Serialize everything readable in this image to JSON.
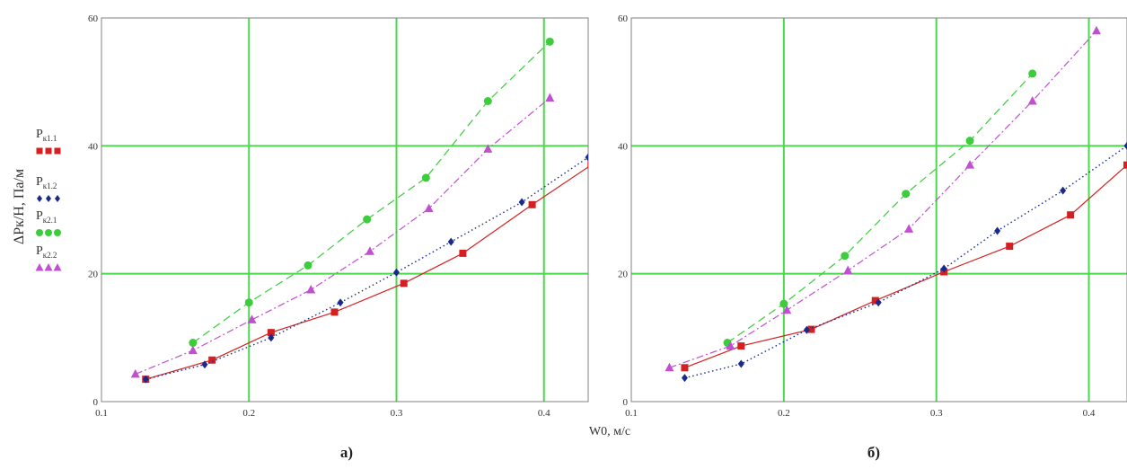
{
  "figure": {
    "y_label": "ΔPк/Н, Па/м",
    "x_label": "W0, м/с",
    "colors": {
      "grid": "#4cd84c",
      "axis": "#808080"
    },
    "legend": [
      {
        "main": "P",
        "sub": "к1.1",
        "marker": "square",
        "color": "#d42020"
      },
      {
        "main": "P",
        "sub": "к1.2",
        "marker": "diamond",
        "color": "#1a2a8c"
      },
      {
        "main": "P",
        "sub": "к2.1",
        "marker": "circle",
        "color": "#3ccc3c"
      },
      {
        "main": "P",
        "sub": "к2.2",
        "marker": "triangle",
        "color": "#c050d0"
      }
    ]
  },
  "chart_data": [
    {
      "type": "line",
      "panel_label": "а)",
      "xlim": [
        0.1,
        0.43
      ],
      "ylim": [
        0,
        60
      ],
      "x_ticks": [
        "0.1",
        "0.2",
        "0.3",
        "0.4"
      ],
      "y_ticks": [
        "0",
        "20",
        "40",
        "60"
      ],
      "grid": true,
      "legend_position": "left",
      "series": [
        {
          "name": "Pк1.1",
          "color": "#d42020",
          "marker": "square",
          "line": "solid",
          "x": [
            0.13,
            0.175,
            0.215,
            0.258,
            0.305,
            0.345,
            0.392,
            0.432
          ],
          "y": [
            3.5,
            6.5,
            10.8,
            14.0,
            18.5,
            23.2,
            30.8,
            37.0
          ]
        },
        {
          "name": "Pк1.2",
          "color": "#1a2a8c",
          "marker": "diamond",
          "line": "dotted",
          "x": [
            0.13,
            0.17,
            0.215,
            0.262,
            0.3,
            0.337,
            0.385,
            0.43
          ],
          "y": [
            3.5,
            5.8,
            10.0,
            15.5,
            20.2,
            25.0,
            31.2,
            38.2
          ]
        },
        {
          "name": "Pк2.1",
          "color": "#3ccc3c",
          "marker": "circle",
          "line": "dashed",
          "x": [
            0.162,
            0.2,
            0.24,
            0.28,
            0.32,
            0.362,
            0.404
          ],
          "y": [
            9.2,
            15.5,
            21.3,
            28.5,
            35.0,
            47.0,
            56.3
          ]
        },
        {
          "name": "Pк2.2",
          "color": "#c050d0",
          "marker": "triangle",
          "line": "dashdot",
          "x": [
            0.123,
            0.162,
            0.202,
            0.242,
            0.282,
            0.322,
            0.362,
            0.404
          ],
          "y": [
            4.3,
            8.0,
            12.8,
            17.5,
            23.5,
            30.2,
            39.5,
            47.5
          ]
        }
      ]
    },
    {
      "type": "line",
      "panel_label": "б)",
      "xlim": [
        0.1,
        0.425
      ],
      "ylim": [
        0,
        60
      ],
      "x_ticks": [
        "0.1",
        "0.2",
        "0.3",
        "0.4"
      ],
      "y_ticks": [
        "0",
        "20",
        "40",
        "60"
      ],
      "grid": true,
      "series": [
        {
          "name": "Pк1.1",
          "color": "#d42020",
          "marker": "square",
          "line": "solid",
          "x": [
            0.135,
            0.172,
            0.218,
            0.26,
            0.305,
            0.348,
            0.388,
            0.425
          ],
          "y": [
            5.3,
            8.7,
            11.3,
            15.8,
            20.3,
            24.3,
            29.2,
            37.0
          ]
        },
        {
          "name": "Pк1.2",
          "color": "#1a2a8c",
          "marker": "diamond",
          "line": "dotted",
          "x": [
            0.135,
            0.172,
            0.215,
            0.262,
            0.305,
            0.34,
            0.383,
            0.425
          ],
          "y": [
            3.7,
            5.9,
            11.2,
            15.5,
            20.8,
            26.7,
            33.0,
            40.0
          ]
        },
        {
          "name": "Pк2.1",
          "color": "#3ccc3c",
          "marker": "circle",
          "line": "dashed",
          "x": [
            0.163,
            0.2,
            0.24,
            0.28,
            0.322,
            0.363
          ],
          "y": [
            9.2,
            15.3,
            22.8,
            32.5,
            40.8,
            51.3
          ]
        },
        {
          "name": "Pк2.2",
          "color": "#c050d0",
          "marker": "triangle",
          "line": "dashdot",
          "x": [
            0.125,
            0.165,
            0.202,
            0.242,
            0.282,
            0.322,
            0.363,
            0.405
          ],
          "y": [
            5.3,
            8.7,
            14.3,
            20.5,
            27.0,
            37.0,
            47.0,
            58.0
          ]
        }
      ]
    }
  ]
}
